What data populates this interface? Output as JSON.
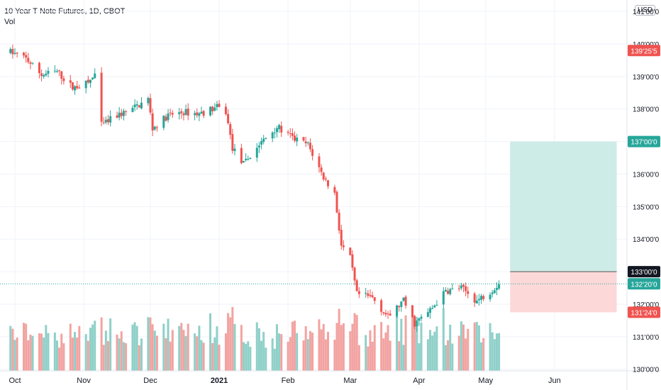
{
  "header": {
    "title": "10 Year T-Note Futures, 1D, CBOT",
    "volume_label": "Vol",
    "currency": "USD"
  },
  "colors": {
    "up": "#26a69a",
    "down": "#ef5350",
    "up_volume": "#8fd0c8",
    "down_volume": "#f2a3a1",
    "target_zone": "#cdebe7",
    "stop_zone": "#fcd8d8",
    "grid": "#f0f3fa",
    "axis_text": "#131722"
  },
  "chart_data": {
    "type": "candlestick",
    "symbol": "10 Year T-Note Futures",
    "interval": "1D",
    "exchange": "CBOT",
    "price_axis": {
      "range": [
        129.95,
        141.35
      ],
      "ticks": [
        {
          "value": 141,
          "label": "141'00'0"
        },
        {
          "value": 140,
          "label": "140'00'0"
        },
        {
          "value": 139,
          "label": "139'00'0"
        },
        {
          "value": 138,
          "label": "138'00'0"
        },
        {
          "value": 137,
          "label": "137'00'0"
        },
        {
          "value": 136,
          "label": "136'00'0"
        },
        {
          "value": 135,
          "label": "135'00'0"
        },
        {
          "value": 134,
          "label": "134'00'0"
        },
        {
          "value": 133,
          "label": "133'00'0"
        },
        {
          "value": 132,
          "label": "132'00'0"
        },
        {
          "value": 131,
          "label": "131'00'0"
        },
        {
          "value": 130,
          "label": "130'00'0"
        }
      ]
    },
    "time_axis": {
      "labels": [
        {
          "date": "2020-10-01",
          "label": "Oct",
          "bold": false
        },
        {
          "date": "2020-11-01",
          "label": "Nov",
          "bold": false
        },
        {
          "date": "2020-12-01",
          "label": "Dec",
          "bold": false
        },
        {
          "date": "2021-01-01",
          "label": "2021",
          "bold": true
        },
        {
          "date": "2021-02-01",
          "label": "Feb",
          "bold": false
        },
        {
          "date": "2021-03-01",
          "label": "Mar",
          "bold": false
        },
        {
          "date": "2021-04-01",
          "label": "Apr",
          "bold": false
        },
        {
          "date": "2021-05-01",
          "label": "May",
          "bold": false
        },
        {
          "date": "2021-06-01",
          "label": "Jun",
          "bold": false
        }
      ]
    },
    "close_path": [
      [
        "2020-09-29",
        139.75
      ],
      [
        "2020-10-06",
        139.55
      ],
      [
        "2020-10-13",
        139.05
      ],
      [
        "2020-10-20",
        139.15
      ],
      [
        "2020-10-27",
        138.65
      ],
      [
        "2020-11-03",
        138.8
      ],
      [
        "2020-11-06",
        139.05
      ],
      [
        "2020-11-09",
        137.5
      ],
      [
        "2020-11-16",
        137.8
      ],
      [
        "2020-11-23",
        138.0
      ],
      [
        "2020-11-30",
        138.3
      ],
      [
        "2020-12-02",
        137.4
      ],
      [
        "2020-12-09",
        137.8
      ],
      [
        "2020-12-16",
        137.9
      ],
      [
        "2020-12-23",
        137.85
      ],
      [
        "2020-12-31",
        138.05
      ],
      [
        "2021-01-04",
        137.9
      ],
      [
        "2021-01-07",
        136.8
      ],
      [
        "2021-01-12",
        136.3
      ],
      [
        "2021-01-19",
        136.9
      ],
      [
        "2021-01-27",
        137.45
      ],
      [
        "2021-02-03",
        137.1
      ],
      [
        "2021-02-10",
        136.9
      ],
      [
        "2021-02-17",
        135.9
      ],
      [
        "2021-02-22",
        135.4
      ],
      [
        "2021-02-25",
        133.8
      ],
      [
        "2021-03-01",
        133.4
      ],
      [
        "2021-03-04",
        132.3
      ],
      [
        "2021-03-11",
        132.2
      ],
      [
        "2021-03-18",
        131.6
      ],
      [
        "2021-03-25",
        132.1
      ],
      [
        "2021-03-30",
        131.4
      ],
      [
        "2021-04-06",
        131.8
      ],
      [
        "2021-04-13",
        132.4
      ],
      [
        "2021-04-20",
        132.5
      ],
      [
        "2021-04-27",
        132.1
      ],
      [
        "2021-05-03",
        132.4
      ],
      [
        "2021-05-07",
        132.625
      ]
    ],
    "last_price": {
      "value": 132.625,
      "label": "132'20'0"
    },
    "price_labels": [
      {
        "value": 139.7969,
        "label": "139'25'5",
        "color": "#ef5350"
      },
      {
        "value": 137.0,
        "label": "137'00'0",
        "color": "#26a69a"
      },
      {
        "value": 133.0,
        "label": "133'00'0",
        "color": "#131722"
      },
      {
        "value": 132.625,
        "label": "132'20'0",
        "color": "#26a69a"
      },
      {
        "value": 131.75,
        "label": "131'24'0",
        "color": "#ef5350"
      }
    ],
    "position": {
      "type": "long",
      "entry": 133.0,
      "target": 137.0,
      "stop": 131.75,
      "start": "2021-05-12",
      "end": "2021-06-29"
    },
    "volume": {
      "visible": true
    }
  }
}
